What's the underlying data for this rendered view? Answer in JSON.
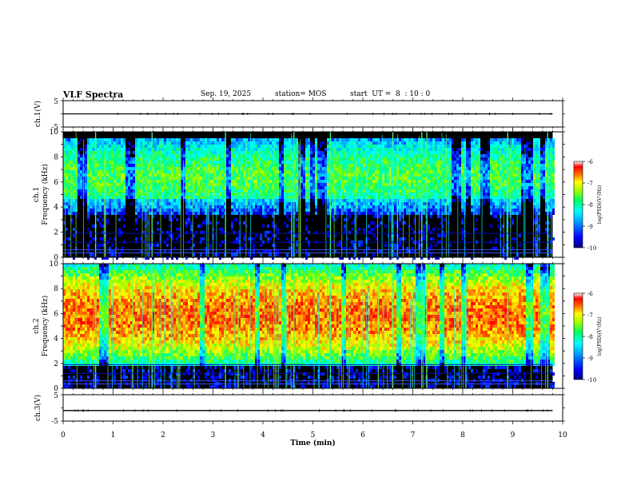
{
  "header": {
    "title": "VLF Spectra",
    "date": "Sep. 19, 2025",
    "station": "station= MOS",
    "start_ut": "start  UT =  8  : 10 : 0"
  },
  "chart_data": [
    {
      "type": "line",
      "panel": "ch1-waveform",
      "ylabel": "ch.1(V)",
      "yticklabels": [
        "5",
        "-5"
      ],
      "ylim": [
        -5,
        5
      ],
      "x_units": "min",
      "series": [
        {
          "x": [
            0,
            9.8
          ],
          "y": [
            0,
            0
          ]
        }
      ]
    },
    {
      "type": "heatmap",
      "panel": "ch1-spectrogram",
      "ylabel": "Frequency (kHz)",
      "channel_label": "ch.1",
      "xlim": [
        0,
        10
      ],
      "ylim": [
        0,
        10
      ],
      "yticks": [
        0,
        2,
        4,
        6,
        8,
        10
      ],
      "data_end_min": 9.8,
      "band_khz": [
        3.5,
        9.5
      ],
      "colorbar": {
        "label": "log(PSD)(V²/Hz)",
        "ticks": [
          "-6",
          "-7",
          "-8",
          "-9",
          "-10"
        ],
        "range": [
          -10,
          -6
        ]
      }
    },
    {
      "type": "heatmap",
      "panel": "ch2-spectrogram",
      "ylabel": "Frequency (kHz)",
      "channel_label": "ch.2",
      "xlim": [
        0,
        10
      ],
      "ylim": [
        0,
        10
      ],
      "yticks": [
        0,
        2,
        4,
        6,
        8,
        10
      ],
      "data_end_min": 9.8,
      "band_khz": [
        2,
        10
      ],
      "colorbar": {
        "label": "log(PSD)(V²/Hz)",
        "ticks": [
          "-6",
          "-7",
          "-8",
          "-9",
          "-10"
        ],
        "range": [
          -10,
          -6
        ]
      }
    },
    {
      "type": "line",
      "panel": "ch3-waveform",
      "ylabel": "ch.3(V)",
      "yticklabels": [
        "5",
        "-5"
      ],
      "ylim": [
        -5,
        5
      ],
      "xlabel": "Time  (min)",
      "xticks": [
        0,
        1,
        2,
        3,
        4,
        5,
        6,
        7,
        8,
        9,
        10
      ],
      "series": [
        {
          "x": [
            0,
            9.8
          ],
          "y": [
            -1,
            -1
          ]
        }
      ]
    }
  ],
  "colors": {
    "background": "#000000",
    "colormap": [
      "#000080",
      "#0000ff",
      "#00a0ff",
      "#00ffff",
      "#00ff80",
      "#80ff00",
      "#ffff00",
      "#ff8000",
      "#ff0000",
      "#ffffff"
    ]
  }
}
